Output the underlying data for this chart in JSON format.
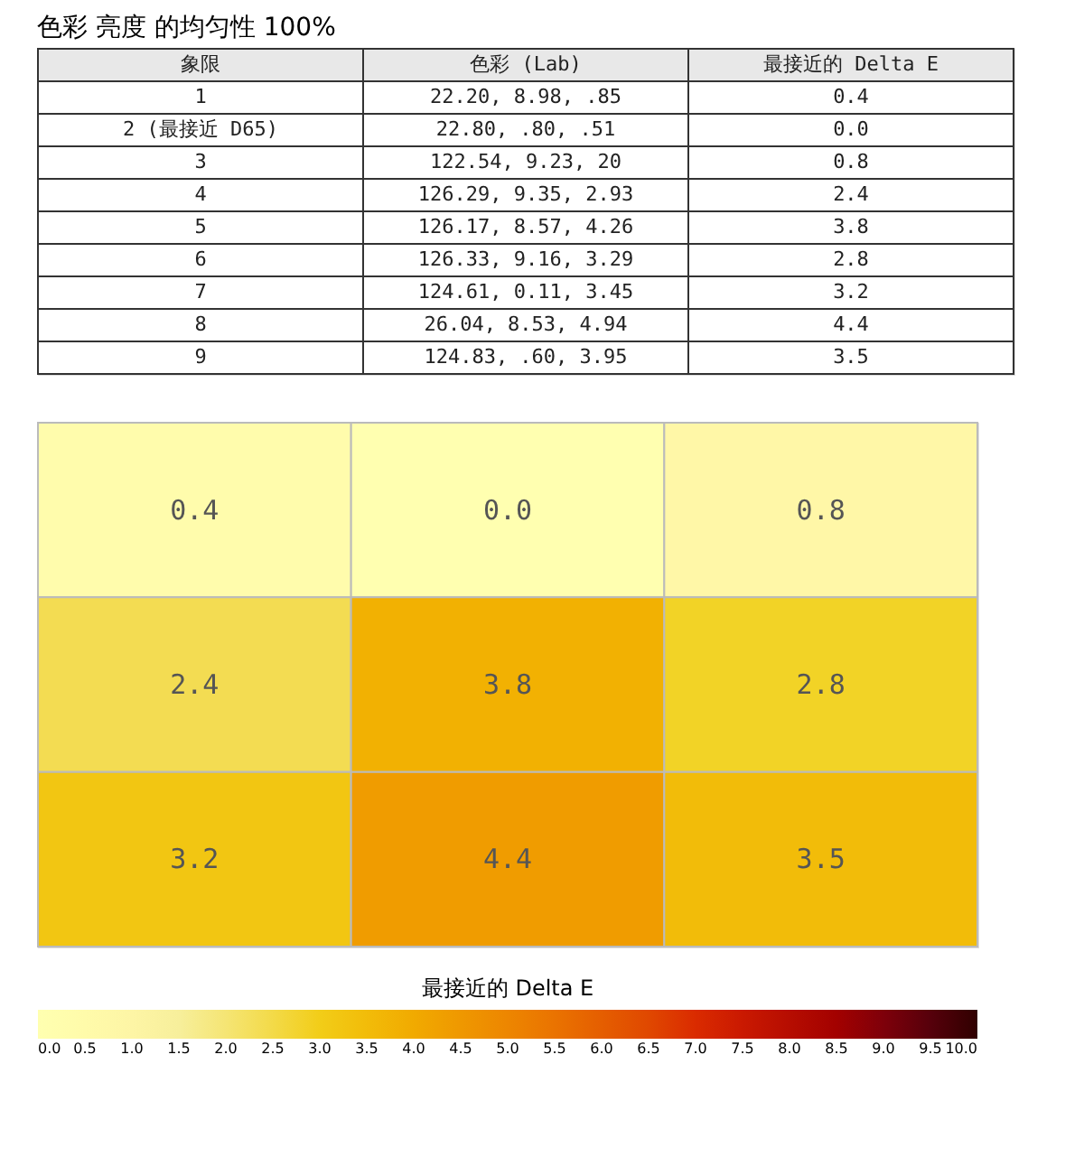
{
  "chart_data": [
    {
      "type": "other",
      "title": "色彩 亮度 的均匀性 100%",
      "annotations": [
        "象限",
        "色彩 (Lab)",
        "最接近的 Delta E",
        "1",
        "22.20, 8.98, .85",
        "0.4",
        "2 (最接近 D65)",
        "22.80, .80, .51",
        "0.0",
        "3",
        "122.54, 9.23, 20",
        "0.8",
        "4",
        "126.29, 9.35, 2.93",
        "2.4",
        "5",
        "126.17, 8.57, 4.26",
        "3.8",
        "6",
        "126.33, 9.16, 3.29",
        "2.8",
        "7",
        "124.61, 0.11, 3.45",
        "3.2",
        "8",
        "26.04, 8.53, 4.94",
        "4.4",
        "9",
        "124.83, .60, 3.95",
        "3.5"
      ]
    },
    {
      "type": "heatmap",
      "categories": [
        null,
        null,
        null
      ],
      "y_categories": [
        null,
        null,
        null
      ],
      "cells": [
        [
          0.4,
          0.0,
          0.8
        ],
        [
          2.4,
          3.8,
          2.8
        ],
        [
          3.2,
          4.4,
          3.5
        ]
      ],
      "cell_labels": [
        [
          "0.4",
          "0.0",
          "0.8"
        ],
        [
          "2.4",
          "3.8",
          "2.8"
        ],
        [
          "3.2",
          "4.4",
          "3.5"
        ]
      ],
      "clabel": "最接近的 Delta E",
      "clim": [
        0,
        10
      ],
      "cticks": [
        {
          "value": 0,
          "label": "0.0"
        },
        {
          "value": 0.5,
          "label": "0.5"
        },
        {
          "value": 1,
          "label": "1.0"
        },
        {
          "value": 1.5,
          "label": "1.5"
        },
        {
          "value": 2,
          "label": "2.0"
        },
        {
          "value": 2.5,
          "label": "2.5"
        },
        {
          "value": 3,
          "label": "3.0"
        },
        {
          "value": 3.5,
          "label": "3.5"
        },
        {
          "value": 4,
          "label": "4.0"
        },
        {
          "value": 4.5,
          "label": "4.5"
        },
        {
          "value": 5,
          "label": "5.0"
        },
        {
          "value": 5.5,
          "label": "5.5"
        },
        {
          "value": 6,
          "label": "6.0"
        },
        {
          "value": 6.5,
          "label": "6.5"
        },
        {
          "value": 7,
          "label": "7.0"
        },
        {
          "value": 7.5,
          "label": "7.5"
        },
        {
          "value": 8,
          "label": "8.0"
        },
        {
          "value": 8.5,
          "label": "8.5"
        },
        {
          "value": 9,
          "label": "9.0"
        },
        {
          "value": 9.5,
          "label": "9.5"
        },
        {
          "value": 10,
          "label": "10.0"
        }
      ]
    }
  ]
}
